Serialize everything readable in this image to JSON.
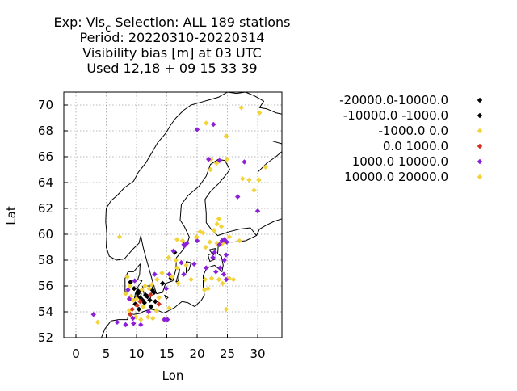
{
  "chart_data": {
    "type": "scatter",
    "title_lines": [
      {
        "main": "Exp: Vis",
        "sub": "c",
        "rest": "   Selection: ALL    189 stations"
      },
      {
        "main": "Period: 20220310-20220314"
      },
      {
        "main": "Visibility bias [m] at  03 UTC"
      },
      {
        "main": "Used  12,18 + 09 15 33 39"
      }
    ],
    "xlabel": "Lon",
    "ylabel": "Lat",
    "xlim": [
      -2,
      34
    ],
    "ylim": [
      52,
      71
    ],
    "xticks": [
      0,
      5,
      10,
      15,
      20,
      25,
      30
    ],
    "yticks": [
      52,
      54,
      56,
      58,
      60,
      62,
      64,
      66,
      68,
      70
    ],
    "grid": true,
    "legend_position": "right",
    "series": [
      {
        "name": "-20000.0-10000.0",
        "color": "#000000",
        "points": [
          [
            10.2,
            55.4
          ],
          [
            11.5,
            55.3
          ]
        ]
      },
      {
        "name": "-10000.0 -1000.0",
        "color": "#000000",
        "points": [
          [
            9.0,
            56.3
          ],
          [
            9.6,
            55.8
          ],
          [
            10.3,
            55.6
          ],
          [
            10.6,
            55.1
          ],
          [
            11.0,
            54.9
          ],
          [
            11.3,
            54.7
          ],
          [
            11.8,
            55.2
          ],
          [
            12.2,
            54.9
          ],
          [
            12.6,
            55.7
          ],
          [
            12.9,
            55.5
          ],
          [
            13.1,
            54.8
          ],
          [
            12.4,
            54.4
          ],
          [
            9.8,
            54.6
          ],
          [
            10.4,
            54.2
          ],
          [
            14.3,
            56.2
          ],
          [
            16.3,
            58.6
          ],
          [
            15.7,
            56.6
          ],
          [
            10.1,
            55.1
          ]
        ]
      },
      {
        "name": "-1000.0 0.0",
        "color": "#f2d33a",
        "points": [
          [
            27.3,
            69.8
          ],
          [
            30.3,
            69.4
          ],
          [
            24.8,
            67.6
          ],
          [
            21.5,
            68.6
          ],
          [
            22.3,
            65.8
          ],
          [
            23.2,
            65.5
          ],
          [
            24.9,
            65.8
          ],
          [
            22.2,
            65.0
          ],
          [
            27.5,
            64.3
          ],
          [
            28.6,
            64.2
          ],
          [
            29.4,
            63.4
          ],
          [
            30.2,
            64.2
          ],
          [
            31.3,
            65.2
          ],
          [
            23.6,
            61.2
          ],
          [
            23.3,
            60.8
          ],
          [
            24.0,
            60.6
          ],
          [
            22.8,
            60.3
          ],
          [
            21.0,
            60.1
          ],
          [
            22.1,
            59.4
          ],
          [
            21.4,
            59.0
          ],
          [
            24.2,
            59.3
          ],
          [
            25.3,
            59.8
          ],
          [
            27.0,
            59.5
          ],
          [
            7.2,
            59.8
          ],
          [
            16.7,
            59.6
          ],
          [
            17.6,
            59.5
          ],
          [
            15.3,
            58.2
          ],
          [
            16.5,
            58.0
          ],
          [
            16.7,
            57.4
          ],
          [
            18.2,
            57.6
          ],
          [
            14.2,
            57.0
          ],
          [
            13.4,
            56.5
          ],
          [
            12.5,
            56.1
          ],
          [
            15.9,
            56.7
          ],
          [
            16.9,
            56.2
          ],
          [
            19.0,
            56.5
          ],
          [
            21.3,
            56.5
          ],
          [
            21.8,
            55.8
          ],
          [
            22.4,
            56.6
          ],
          [
            23.6,
            56.5
          ],
          [
            25.3,
            56.6
          ],
          [
            26.0,
            56.5
          ],
          [
            24.2,
            56.2
          ],
          [
            21.2,
            55.7
          ],
          [
            24.8,
            54.2
          ],
          [
            8.5,
            56.7
          ],
          [
            8.9,
            56.0
          ],
          [
            8.2,
            55.4
          ],
          [
            9.1,
            55.2
          ],
          [
            10.9,
            55.7
          ],
          [
            11.4,
            56.0
          ],
          [
            12.1,
            55.8
          ],
          [
            11.1,
            54.4
          ],
          [
            11.9,
            53.6
          ],
          [
            9.9,
            53.6
          ],
          [
            13.3,
            54.1
          ],
          [
            14.5,
            53.4
          ],
          [
            15.4,
            54.3
          ],
          [
            13.7,
            55.1
          ],
          [
            10.7,
            53.4
          ],
          [
            12.7,
            53.5
          ],
          [
            8.8,
            54.1
          ],
          [
            3.6,
            53.2
          ],
          [
            9.5,
            54.9
          ],
          [
            10.0,
            55.0
          ],
          [
            23.3,
            59.3
          ]
        ]
      },
      {
        "name": "0.0 1000.0",
        "color": "#d62e1e",
        "points": [
          [
            9.3,
            54.2
          ],
          [
            10.1,
            54.5
          ],
          [
            9.0,
            53.8
          ],
          [
            10.6,
            54.8
          ],
          [
            12.3,
            55.3
          ],
          [
            13.7,
            54.6
          ]
        ]
      },
      {
        "name": "1000.0 10000.0",
        "color": "#8a20d8",
        "points": [
          [
            20.0,
            68.1
          ],
          [
            22.7,
            68.5
          ],
          [
            21.9,
            65.8
          ],
          [
            23.7,
            65.7
          ],
          [
            27.8,
            65.6
          ],
          [
            26.7,
            62.9
          ],
          [
            30.0,
            61.8
          ],
          [
            24.5,
            59.6
          ],
          [
            24.1,
            59.5
          ],
          [
            24.9,
            59.4
          ],
          [
            23.7,
            59.2
          ],
          [
            22.9,
            58.6
          ],
          [
            24.8,
            58.4
          ],
          [
            22.6,
            58.2
          ],
          [
            24.5,
            58.0
          ],
          [
            23.8,
            57.4
          ],
          [
            23.1,
            57.1
          ],
          [
            21.5,
            57.4
          ],
          [
            24.4,
            56.9
          ],
          [
            24.8,
            56.5
          ],
          [
            18.3,
            59.3
          ],
          [
            17.9,
            59.1
          ],
          [
            16.1,
            58.7
          ],
          [
            17.4,
            57.8
          ],
          [
            17.8,
            56.9
          ],
          [
            19.5,
            57.7
          ],
          [
            15.4,
            56.9
          ],
          [
            14.9,
            55.8
          ],
          [
            14.6,
            53.4
          ],
          [
            12.0,
            54.0
          ],
          [
            10.7,
            53.0
          ],
          [
            9.5,
            53.1
          ],
          [
            8.2,
            53.0
          ],
          [
            6.8,
            53.2
          ],
          [
            9.4,
            53.5
          ],
          [
            8.8,
            55.0
          ],
          [
            8.6,
            55.7
          ],
          [
            9.7,
            56.4
          ],
          [
            13.0,
            56.9
          ],
          [
            15.1,
            53.4
          ],
          [
            2.9,
            53.8
          ],
          [
            17.8,
            59.2
          ],
          [
            20.0,
            59.5
          ]
        ]
      },
      {
        "name": "10000.0 20000.0",
        "color": "#f2d33a",
        "points": [
          [
            20.5,
            60.2
          ],
          [
            19.9,
            59.8
          ]
        ]
      }
    ]
  }
}
